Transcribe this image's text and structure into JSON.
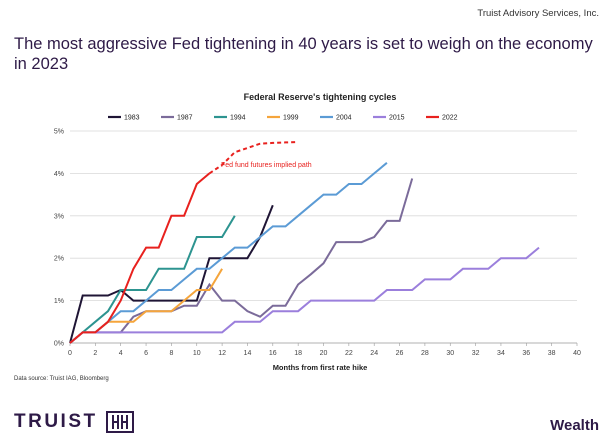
{
  "header": {
    "source": "Truist Advisory Services, Inc."
  },
  "headline": "The most aggressive Fed tightening in 40 years is set to weigh on the economy in 2023",
  "footer": {
    "data_source": "Data source: Truist IAG, Bloomberg",
    "brand": "TRUIST",
    "brand_mark": "HH",
    "division": "Wealth"
  },
  "chart_data": {
    "type": "line",
    "title": "Federal Reserve's tightening cycles",
    "xlabel": "Months from first rate hike",
    "ylabel": "",
    "xlim": [
      0,
      40
    ],
    "ylim": [
      0,
      5
    ],
    "x_ticks": [
      "0",
      "2",
      "4",
      "6",
      "8",
      "10",
      "12",
      "14",
      "16",
      "18",
      "20",
      "22",
      "24",
      "26",
      "28",
      "30",
      "32",
      "34",
      "36",
      "38",
      "40"
    ],
    "y_ticks": [
      "0%",
      "1%",
      "2%",
      "3%",
      "4%",
      "5%"
    ],
    "legend_position": "top",
    "annotation": "Fed fund futures implied path",
    "series": [
      {
        "name": "1983",
        "color": "#1f1535",
        "points": [
          [
            0,
            0
          ],
          [
            1,
            1.12
          ],
          [
            2,
            1.12
          ],
          [
            3,
            1.12
          ],
          [
            4,
            1.25
          ],
          [
            5,
            1.0
          ],
          [
            6,
            1.0
          ],
          [
            7,
            1.0
          ],
          [
            8,
            1.0
          ],
          [
            9,
            1.0
          ],
          [
            10,
            1.0
          ],
          [
            11,
            2.0
          ],
          [
            12,
            2.0
          ],
          [
            13,
            2.0
          ],
          [
            14,
            2.0
          ],
          [
            15,
            2.5
          ],
          [
            16,
            3.25
          ]
        ]
      },
      {
        "name": "1987",
        "color": "#7b6b9a",
        "points": [
          [
            0,
            0
          ],
          [
            1,
            0.25
          ],
          [
            2,
            0.25
          ],
          [
            3,
            0.25
          ],
          [
            4,
            0.25
          ],
          [
            5,
            0.62
          ],
          [
            6,
            0.75
          ],
          [
            7,
            0.75
          ],
          [
            8,
            0.75
          ],
          [
            9,
            0.88
          ],
          [
            10,
            0.88
          ],
          [
            11,
            1.38
          ],
          [
            12,
            1.0
          ],
          [
            13,
            1.0
          ],
          [
            14,
            0.75
          ],
          [
            15,
            0.62
          ],
          [
            16,
            0.88
          ],
          [
            17,
            0.88
          ],
          [
            18,
            1.38
          ],
          [
            19,
            1.62
          ],
          [
            20,
            1.88
          ],
          [
            21,
            2.38
          ],
          [
            22,
            2.38
          ],
          [
            23,
            2.38
          ],
          [
            24,
            2.5
          ],
          [
            25,
            2.88
          ],
          [
            26,
            2.88
          ],
          [
            27,
            3.88
          ]
        ]
      },
      {
        "name": "1994",
        "color": "#2d9490",
        "points": [
          [
            0,
            0
          ],
          [
            1,
            0.25
          ],
          [
            2,
            0.5
          ],
          [
            3,
            0.75
          ],
          [
            4,
            1.25
          ],
          [
            5,
            1.25
          ],
          [
            6,
            1.25
          ],
          [
            7,
            1.75
          ],
          [
            8,
            1.75
          ],
          [
            9,
            1.75
          ],
          [
            10,
            2.5
          ],
          [
            11,
            2.5
          ],
          [
            12,
            2.5
          ],
          [
            13,
            3.0
          ]
        ]
      },
      {
        "name": "1999",
        "color": "#f5a53c",
        "points": [
          [
            0,
            0
          ],
          [
            1,
            0.25
          ],
          [
            2,
            0.25
          ],
          [
            3,
            0.5
          ],
          [
            4,
            0.5
          ],
          [
            5,
            0.5
          ],
          [
            6,
            0.75
          ],
          [
            7,
            0.75
          ],
          [
            8,
            0.75
          ],
          [
            9,
            1.0
          ],
          [
            10,
            1.25
          ],
          [
            11,
            1.25
          ],
          [
            12,
            1.75
          ]
        ]
      },
      {
        "name": "2004",
        "color": "#5b9bd5",
        "points": [
          [
            0,
            0
          ],
          [
            1,
            0.25
          ],
          [
            2,
            0.25
          ],
          [
            3,
            0.5
          ],
          [
            4,
            0.75
          ],
          [
            5,
            0.75
          ],
          [
            6,
            1.0
          ],
          [
            7,
            1.25
          ],
          [
            8,
            1.25
          ],
          [
            9,
            1.5
          ],
          [
            10,
            1.75
          ],
          [
            11,
            1.75
          ],
          [
            12,
            2.0
          ],
          [
            13,
            2.25
          ],
          [
            14,
            2.25
          ],
          [
            15,
            2.5
          ],
          [
            16,
            2.75
          ],
          [
            17,
            2.75
          ],
          [
            18,
            3.0
          ],
          [
            19,
            3.25
          ],
          [
            20,
            3.5
          ],
          [
            21,
            3.5
          ],
          [
            22,
            3.75
          ],
          [
            23,
            3.75
          ],
          [
            24,
            4.0
          ],
          [
            25,
            4.25
          ]
        ]
      },
      {
        "name": "2015",
        "color": "#9b7fdc",
        "points": [
          [
            0,
            0
          ],
          [
            1,
            0.25
          ],
          [
            4,
            0.25
          ],
          [
            12,
            0.25
          ],
          [
            13,
            0.5
          ],
          [
            15,
            0.5
          ],
          [
            16,
            0.75
          ],
          [
            18,
            0.75
          ],
          [
            19,
            1.0
          ],
          [
            24,
            1.0
          ],
          [
            25,
            1.25
          ],
          [
            27,
            1.25
          ],
          [
            28,
            1.5
          ],
          [
            30,
            1.5
          ],
          [
            31,
            1.75
          ],
          [
            33,
            1.75
          ],
          [
            34,
            2.0
          ],
          [
            36,
            2.0
          ],
          [
            37,
            2.25
          ]
        ]
      },
      {
        "name": "2022",
        "color": "#e8211e",
        "points": [
          [
            0,
            0
          ],
          [
            1,
            0.25
          ],
          [
            2,
            0.25
          ],
          [
            3,
            0.5
          ],
          [
            4,
            1.0
          ],
          [
            5,
            1.75
          ],
          [
            6,
            2.25
          ],
          [
            7,
            2.25
          ],
          [
            8,
            3.0
          ],
          [
            9,
            3.0
          ],
          [
            10,
            3.75
          ],
          [
            11,
            4.0
          ]
        ]
      },
      {
        "name": "2022 implied",
        "color": "#e8211e",
        "dashed": true,
        "points": [
          [
            11,
            4.0
          ],
          [
            12,
            4.2
          ],
          [
            13,
            4.5
          ],
          [
            14,
            4.6
          ],
          [
            15,
            4.7
          ],
          [
            16,
            4.72
          ],
          [
            17,
            4.73
          ],
          [
            18,
            4.74
          ]
        ]
      }
    ]
  }
}
